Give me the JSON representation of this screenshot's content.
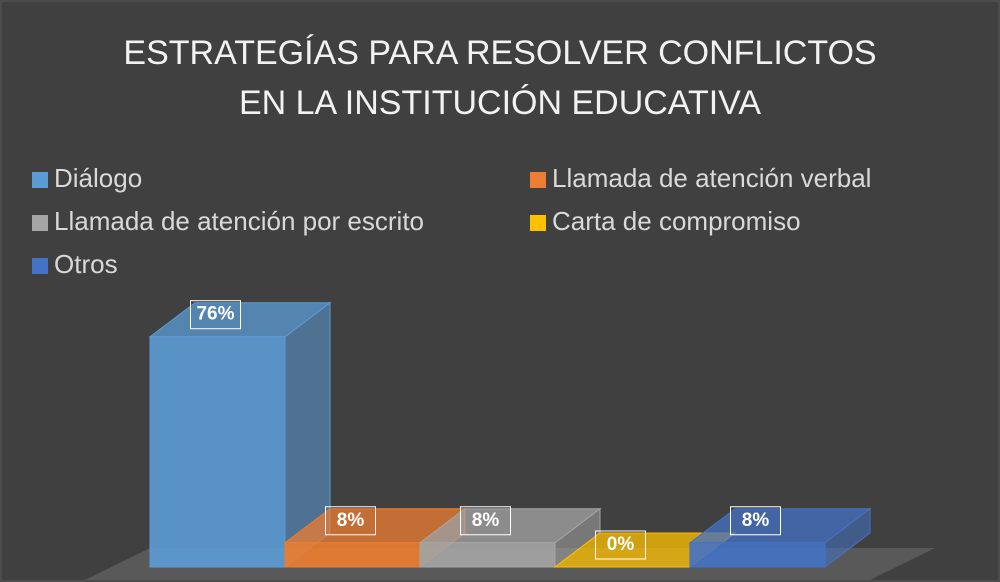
{
  "chart_data": {
    "type": "bar3d",
    "title": [
      "ESTRATEGÍAS PARA RESOLVER CONFLICTOS",
      "EN LA INSTITUCIÓN EDUCATIVA"
    ],
    "series": [
      {
        "name": "Diálogo",
        "color": "#5b9bd5",
        "values": [
          76
        ],
        "value_labels": [
          "76%"
        ]
      },
      {
        "name": "Llamada de atención verbal",
        "color": "#ed7d31",
        "values": [
          8
        ],
        "value_labels": [
          "8%"
        ]
      },
      {
        "name": "Llamada de atención por escrito",
        "color": "#a5a5a5",
        "values": [
          8
        ],
        "value_labels": [
          "8%"
        ]
      },
      {
        "name": "Carta de compromiso",
        "color": "#ffc000",
        "values": [
          0
        ],
        "value_labels": [
          "0%"
        ]
      },
      {
        "name": "Otros",
        "color": "#4472c4",
        "values": [
          8
        ],
        "value_labels": [
          "8%"
        ]
      }
    ],
    "legend": "top"
  }
}
